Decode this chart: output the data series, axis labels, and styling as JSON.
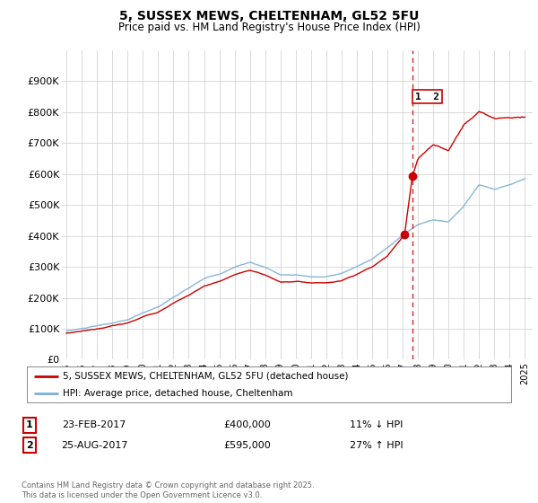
{
  "title": "5, SUSSEX MEWS, CHELTENHAM, GL52 5FU",
  "subtitle": "Price paid vs. HM Land Registry's House Price Index (HPI)",
  "legend_label1": "5, SUSSEX MEWS, CHELTENHAM, GL52 5FU (detached house)",
  "legend_label2": "HPI: Average price, detached house, Cheltenham",
  "sale1_date": "23-FEB-2017",
  "sale1_price": 400000,
  "sale1_pct": "11% ↓ HPI",
  "sale2_date": "25-AUG-2017",
  "sale2_price": 595000,
  "sale2_pct": "27% ↑ HPI",
  "footer": "Contains HM Land Registry data © Crown copyright and database right 2025.\nThis data is licensed under the Open Government Licence v3.0.",
  "color_red": "#cc0000",
  "color_blue": "#7bafd4",
  "color_dashed": "#cc0000",
  "background": "#ffffff",
  "grid_color": "#cccccc",
  "ylim": [
    0,
    1000000
  ],
  "yticks": [
    0,
    100000,
    200000,
    300000,
    400000,
    500000,
    600000,
    700000,
    800000,
    900000
  ],
  "ytick_labels": [
    "£0",
    "£100K",
    "£200K",
    "£300K",
    "£400K",
    "£500K",
    "£600K",
    "£700K",
    "£800K",
    "£900K"
  ],
  "x_start_year": 1995,
  "x_end_year": 2025,
  "sale1_year": 2017.12,
  "sale2_year": 2017.65,
  "vline_year": 2017.65,
  "hpi_points_x": [
    1995,
    1996,
    1997,
    1998,
    1999,
    2000,
    2001,
    2002,
    2003,
    2004,
    2005,
    2006,
    2007,
    2008,
    2009,
    2010,
    2011,
    2012,
    2013,
    2014,
    2015,
    2016,
    2017,
    2018,
    2019,
    2020,
    2021,
    2022,
    2023,
    2024,
    2025
  ],
  "hpi_points_y": [
    92000,
    100000,
    108000,
    116000,
    126000,
    148000,
    168000,
    200000,
    228000,
    258000,
    272000,
    295000,
    310000,
    295000,
    270000,
    272000,
    265000,
    265000,
    275000,
    295000,
    320000,
    355000,
    395000,
    430000,
    445000,
    440000,
    490000,
    560000,
    545000,
    560000,
    580000
  ],
  "prop_points_x": [
    1995,
    1996,
    1997,
    1998,
    1999,
    2000,
    2001,
    2002,
    2003,
    2004,
    2005,
    2006,
    2007,
    2008,
    2009,
    2010,
    2011,
    2012,
    2013,
    2014,
    2015,
    2016,
    2017.12,
    2017.65,
    2018,
    2019,
    2020,
    2021,
    2022,
    2023,
    2024,
    2025
  ],
  "prop_points_y": [
    85000,
    93000,
    100000,
    110000,
    118000,
    138000,
    155000,
    185000,
    210000,
    238000,
    252000,
    272000,
    288000,
    272000,
    250000,
    252000,
    248000,
    248000,
    255000,
    272000,
    295000,
    330000,
    400000,
    595000,
    650000,
    695000,
    680000,
    760000,
    810000,
    790000,
    790000,
    790000
  ]
}
